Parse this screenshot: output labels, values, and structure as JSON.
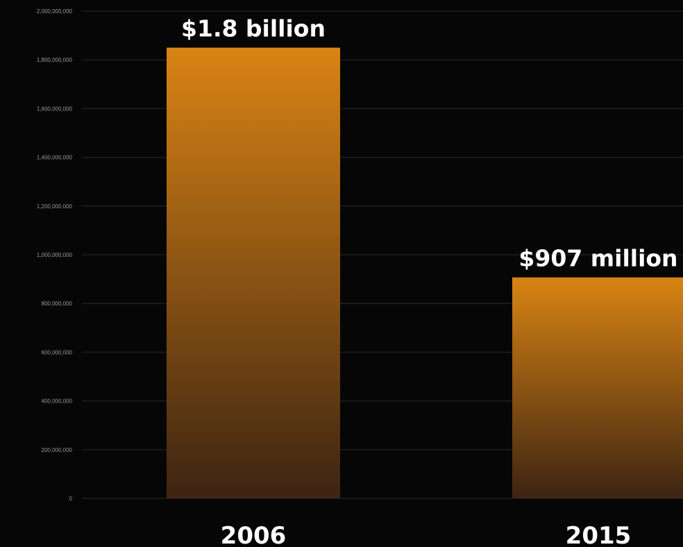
{
  "colors": {
    "background": "#060606",
    "bar_top": "#d98414",
    "bar_bottom": "#3d2412",
    "text": "#ffffff",
    "tick_text": "#9a9a9a",
    "grid": "#1f1f1f"
  },
  "chart_data": {
    "type": "bar",
    "categories": [
      "2006",
      "2015"
    ],
    "values": [
      1850000000,
      907000000
    ],
    "data_labels": [
      "$1.8 billion",
      "$907 million"
    ],
    "ylim": [
      0,
      2000000000
    ],
    "yticks": [
      0,
      200000000,
      400000000,
      600000000,
      800000000,
      1000000000,
      1200000000,
      1400000000,
      1600000000,
      1800000000,
      2000000000
    ],
    "ytick_labels": [
      "0",
      "200,000,000",
      "400,000,000",
      "600,000,000",
      "800,000,000",
      "1,000,000,000",
      "1,200,000,000",
      "1,400,000,000",
      "1,600,000,000",
      "1,800,000,000",
      "2,000,000,000"
    ],
    "grid": true,
    "legend": "none"
  }
}
